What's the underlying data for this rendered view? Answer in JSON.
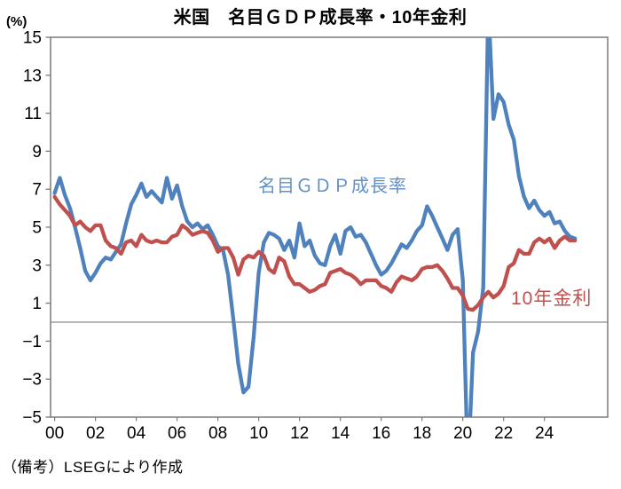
{
  "page": {
    "background": "#ffffff"
  },
  "header": {
    "title": "米国　名目ＧＤＰ成長率・10年金利",
    "unit_label": "(%)"
  },
  "footer": {
    "note": "（備考）LSEGにより作成"
  },
  "chart_data": {
    "type": "line",
    "title": "米国　名目ＧＤＰ成長率・10年金利",
    "xlabel": "",
    "ylabel": "(%)",
    "ylim": [
      -5,
      15
    ],
    "xlim": [
      1999.8,
      2027.1
    ],
    "grid": false,
    "zero_line": 0,
    "legend_position": "inline-annotations",
    "frame_color": "#7a7a7a",
    "zero_line_color": "#8c8c8c",
    "tick_color": "#7a7a7a",
    "y_ticks": [
      {
        "v": 15,
        "label": "15"
      },
      {
        "v": 13,
        "label": "13"
      },
      {
        "v": 11,
        "label": "11"
      },
      {
        "v": 9,
        "label": "9"
      },
      {
        "v": 7,
        "label": "7"
      },
      {
        "v": 5,
        "label": "5"
      },
      {
        "v": 3,
        "label": "3"
      },
      {
        "v": 1,
        "label": "1"
      },
      {
        "v": -1,
        "label": "−1"
      },
      {
        "v": -3,
        "label": "−3"
      },
      {
        "v": -5,
        "label": "−5"
      }
    ],
    "x_ticks": [
      {
        "t": 2000,
        "label": "00"
      },
      {
        "t": 2002,
        "label": "02"
      },
      {
        "t": 2004,
        "label": "04"
      },
      {
        "t": 2006,
        "label": "06"
      },
      {
        "t": 2008,
        "label": "08"
      },
      {
        "t": 2010,
        "label": "10"
      },
      {
        "t": 2012,
        "label": "12"
      },
      {
        "t": 2014,
        "label": "14"
      },
      {
        "t": 2016,
        "label": "16"
      },
      {
        "t": 2018,
        "label": "18"
      },
      {
        "t": 2020,
        "label": "20"
      },
      {
        "t": 2022,
        "label": "22"
      },
      {
        "t": 2024,
        "label": "24"
      }
    ],
    "series": [
      {
        "name": "nominal-gdp-growth",
        "label": "名目ＧＤＰ成長率",
        "color": "#4F81BD",
        "label_color": "#6090C8",
        "start_year": 2000,
        "interval_years": 0.25,
        "values": [
          6.8,
          7.6,
          6.7,
          6.0,
          5.0,
          3.9,
          2.7,
          2.2,
          2.6,
          3.1,
          3.4,
          3.3,
          3.7,
          4.1,
          5.2,
          6.2,
          6.7,
          7.3,
          6.6,
          6.9,
          6.6,
          6.3,
          7.6,
          6.5,
          7.2,
          6.1,
          5.3,
          5.0,
          5.2,
          4.9,
          5.1,
          4.6,
          4.0,
          3.8,
          2.5,
          0.2,
          -2.2,
          -3.7,
          -3.4,
          -0.8,
          2.6,
          4.2,
          4.7,
          4.6,
          4.4,
          3.8,
          4.3,
          3.4,
          5.2,
          4.0,
          4.3,
          3.5,
          3.1,
          3.0,
          4.0,
          4.6,
          3.6,
          4.8,
          5.0,
          4.5,
          4.6,
          4.2,
          3.6,
          3.0,
          2.5,
          2.7,
          3.1,
          3.6,
          4.1,
          3.9,
          4.3,
          4.8,
          5.1,
          6.1,
          5.6,
          5.0,
          4.4,
          3.8,
          4.6,
          4.9,
          2.2,
          -7.9,
          -1.6,
          -0.5,
          1.8,
          16.8,
          10.7,
          12.0,
          11.6,
          10.4,
          9.6,
          7.7,
          6.6,
          6.0,
          6.4,
          5.9,
          5.6,
          5.8,
          5.2,
          5.3,
          4.8,
          4.5,
          4.4
        ]
      },
      {
        "name": "10-year-interest-rate",
        "label": "10年金利",
        "color": "#C0504D",
        "label_color": "#C0504D",
        "start_year": 2000,
        "interval_years": 0.25,
        "values": [
          6.6,
          6.2,
          5.9,
          5.6,
          5.1,
          5.3,
          5.0,
          4.8,
          5.1,
          5.1,
          4.3,
          4.0,
          3.9,
          3.6,
          4.2,
          4.3,
          4.0,
          4.6,
          4.3,
          4.2,
          4.3,
          4.2,
          4.2,
          4.5,
          4.6,
          5.1,
          4.9,
          4.6,
          4.7,
          4.8,
          4.7,
          4.3,
          3.7,
          3.9,
          3.9,
          3.4,
          2.5,
          3.3,
          3.5,
          3.4,
          3.7,
          3.5,
          2.8,
          2.6,
          3.4,
          3.2,
          2.4,
          2.0,
          2.0,
          1.8,
          1.6,
          1.7,
          1.9,
          2.0,
          2.6,
          2.7,
          2.8,
          2.6,
          2.5,
          2.3,
          2.0,
          2.2,
          2.2,
          2.2,
          1.9,
          1.8,
          1.6,
          2.1,
          2.4,
          2.3,
          2.2,
          2.4,
          2.8,
          2.9,
          2.9,
          3.0,
          2.7,
          2.3,
          1.8,
          1.8,
          1.4,
          0.7,
          0.65,
          0.9,
          1.3,
          1.6,
          1.3,
          1.5,
          1.9,
          2.9,
          3.1,
          3.8,
          3.6,
          3.6,
          4.2,
          4.4,
          4.2,
          4.4,
          3.9,
          4.3,
          4.5,
          4.3,
          4.3
        ]
      }
    ]
  }
}
